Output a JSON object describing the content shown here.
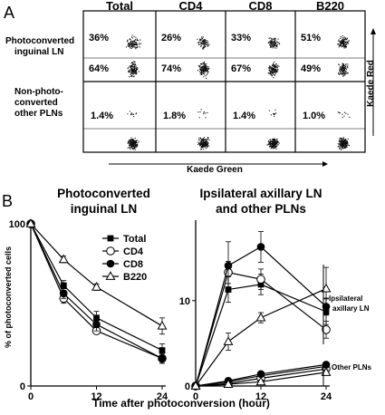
{
  "panel_a": {
    "letter": "A",
    "columns": [
      "Total",
      "CD4",
      "CD8",
      "B220"
    ],
    "rows": [
      {
        "label_lines": [
          "Photoconverted",
          "inguinal LN"
        ],
        "upper": [
          "36%",
          "26%",
          "33%",
          "51%"
        ],
        "lower": [
          "64%",
          "74%",
          "67%",
          "49%"
        ]
      },
      {
        "label_lines": [
          "Non-photo-",
          "converted",
          "other PLNs"
        ],
        "upper": [
          "1.4%",
          "1.8%",
          "1.4%",
          "1.0%"
        ],
        "lower": [
          "",
          "",
          "",
          ""
        ]
      }
    ],
    "x_axis_label": "Kaede Green",
    "y_axis_label": "Kaede Red"
  },
  "panel_b": {
    "letter": "B",
    "y_axis_label": "% of photoconverted cells",
    "x_axis_label": "Time after photoconversion (hour)",
    "legend": {
      "markers": [
        "square-filled",
        "circle-open",
        "circle-filled",
        "triangle-open"
      ]
    },
    "bracket_labels": {
      "upper_lines": [
        "Ipsilateral",
        "axillary LN"
      ],
      "lower": "Other PLNs"
    }
  },
  "colors": {
    "line": "#000000",
    "background": "#ffffff",
    "dots": "#111111"
  },
  "chart_data": [
    {
      "type": "line",
      "title": "Photoconverted inguinal LN",
      "title_lines": [
        "Photoconverted",
        "inguinal LN"
      ],
      "xlabel": "",
      "ylabel": "% of photoconverted cells",
      "x": [
        0,
        6,
        12,
        24
      ],
      "xticks": [
        "0",
        "12",
        "24"
      ],
      "yticks": [
        "0",
        "100"
      ],
      "xlim": [
        0,
        24
      ],
      "ylim": [
        0,
        100
      ],
      "series": [
        {
          "name": "Total",
          "marker": "square-filled",
          "values": [
            100,
            62,
            42,
            22
          ],
          "err": [
            0,
            3,
            4,
            4
          ]
        },
        {
          "name": "CD4",
          "marker": "circle-open",
          "values": [
            100,
            54,
            34,
            17
          ],
          "err": [
            0,
            3,
            2,
            3
          ]
        },
        {
          "name": "CD8",
          "marker": "circle-filled",
          "values": [
            100,
            57,
            38,
            17
          ],
          "err": [
            0,
            3,
            4,
            3
          ]
        },
        {
          "name": "B220",
          "marker": "triangle-open",
          "values": [
            100,
            78,
            61,
            37
          ],
          "err": [
            0,
            2,
            2,
            5
          ]
        }
      ]
    },
    {
      "type": "line",
      "title": "Ipsilateral axillary LN and other PLNs",
      "title_lines": [
        "Ipsilateral axillary LN",
        "and other PLNs"
      ],
      "xlabel": "",
      "ylabel": "",
      "x": [
        0,
        6,
        12,
        24
      ],
      "xticks": [
        "0",
        "12",
        "24"
      ],
      "yticks": [
        "0",
        "10"
      ],
      "xlim": [
        0,
        24
      ],
      "ylim": [
        0,
        19
      ],
      "series": [
        {
          "name": "Total",
          "marker": "square-filled",
          "values": [
            0,
            11.3,
            11.9,
            8.7
          ],
          "err": [
            0,
            1.5,
            1.2,
            1.5
          ]
        },
        {
          "name": "CD4",
          "marker": "circle-open",
          "values": [
            0,
            13.3,
            12.5,
            6.6
          ],
          "err": [
            0,
            1.3,
            1.2,
            1.0
          ]
        },
        {
          "name": "CD8",
          "marker": "circle-filled",
          "values": [
            0,
            14.1,
            16.3,
            9.3
          ],
          "err": [
            0,
            2.8,
            1.8,
            1.0
          ]
        },
        {
          "name": "B220",
          "marker": "triangle-open",
          "values": [
            0,
            5.2,
            8.0,
            11.4
          ],
          "err": [
            0,
            1.0,
            0.6,
            2.5
          ]
        },
        {
          "name": "Total",
          "marker": "square-filled",
          "values": [
            0,
            0.5,
            1.2,
            2.3
          ],
          "err": [
            0,
            0.2,
            0.2,
            0.3
          ]
        },
        {
          "name": "CD4",
          "marker": "circle-open",
          "values": [
            0,
            0.3,
            0.9,
            2.0
          ],
          "err": [
            0,
            0.2,
            0.2,
            0.3
          ]
        },
        {
          "name": "CD8",
          "marker": "circle-filled",
          "values": [
            0,
            0.6,
            1.4,
            2.5
          ],
          "err": [
            0,
            0.2,
            0.2,
            0.3
          ]
        },
        {
          "name": "B220",
          "marker": "triangle-open",
          "values": [
            0,
            0.2,
            0.5,
            1.6
          ],
          "err": [
            0,
            0.1,
            0.2,
            0.3
          ]
        }
      ]
    }
  ]
}
